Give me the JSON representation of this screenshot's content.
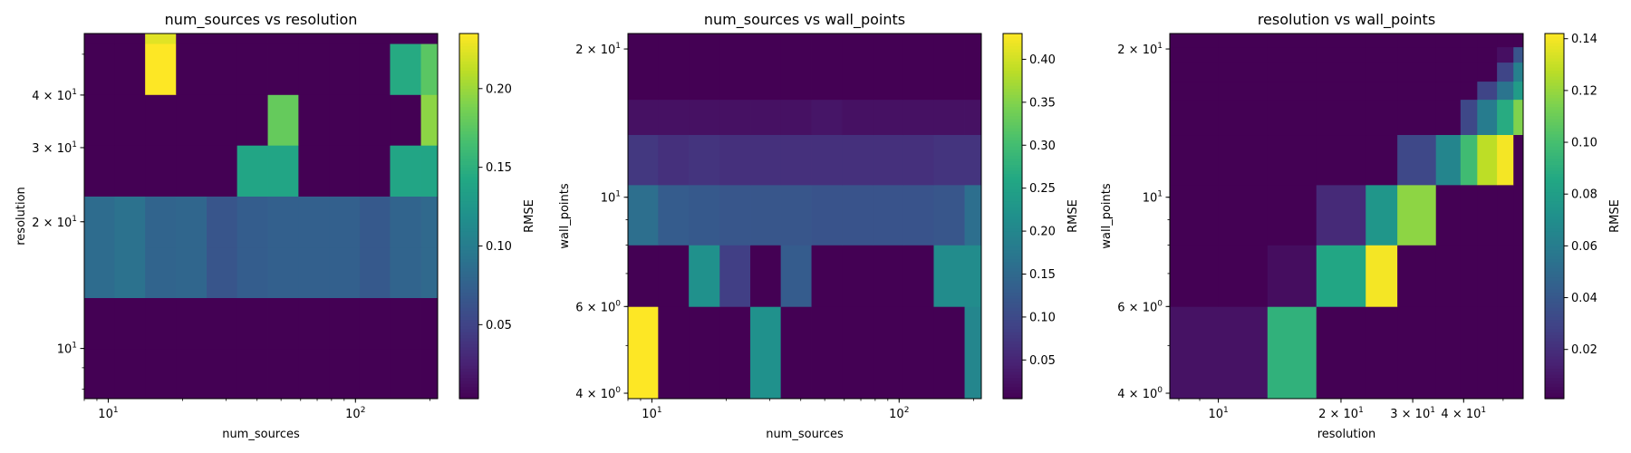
{
  "chart_data": [
    {
      "type": "heatmap",
      "title": "num_sources vs resolution",
      "xlabel": "num_sources",
      "ylabel": "resolution",
      "colorbar_label": "RMSE",
      "xscale": "log",
      "yscale": "log",
      "xlim": [
        8,
        215
      ],
      "ylim": [
        7.6,
        56
      ],
      "x_ticks": [
        {
          "value": 10,
          "label": "10",
          "exp": "1"
        },
        {
          "value": 100,
          "label": "10",
          "exp": "2"
        }
      ],
      "y_ticks": [
        {
          "value": 10,
          "label": "10",
          "exp": "1"
        },
        {
          "value": 20,
          "label": "2 × 10",
          "exp": "1"
        },
        {
          "value": 30,
          "label": "3 × 10",
          "exp": "1"
        },
        {
          "value": 40,
          "label": "4 × 10",
          "exp": "1"
        }
      ],
      "x_edges": [
        8,
        10.6,
        14.1,
        18.8,
        25.0,
        33.2,
        44.2,
        58.8,
        78.2,
        104,
        138,
        184,
        215
      ],
      "y_edges": [
        7.6,
        10.0,
        13.2,
        17.4,
        23.0,
        30.4,
        40.1,
        53.0,
        56
      ],
      "values": [
        [
          0.003,
          0.003,
          0.003,
          0.003,
          0.003,
          0.003,
          0.003,
          0.003,
          0.003,
          0.003,
          0.003,
          0.003
        ],
        [
          0.003,
          0.003,
          0.003,
          0.003,
          0.003,
          0.003,
          0.003,
          0.003,
          0.003,
          0.003,
          0.003,
          0.003
        ],
        [
          0.085,
          0.09,
          0.078,
          0.08,
          0.065,
          0.072,
          0.074,
          0.074,
          0.074,
          0.068,
          0.078,
          0.082
        ],
        [
          0.085,
          0.09,
          0.078,
          0.08,
          0.065,
          0.072,
          0.074,
          0.074,
          0.074,
          0.068,
          0.078,
          0.082
        ],
        [
          0.003,
          0.003,
          0.003,
          0.003,
          0.003,
          0.14,
          0.14,
          0.003,
          0.003,
          0.003,
          0.14,
          0.14
        ],
        [
          0.003,
          0.003,
          0.003,
          0.003,
          0.003,
          0.003,
          0.18,
          0.003,
          0.003,
          0.003,
          0.003,
          0.195
        ],
        [
          0.003,
          0.003,
          0.235,
          0.003,
          0.003,
          0.003,
          0.003,
          0.003,
          0.003,
          0.003,
          0.145,
          0.175
        ],
        [
          0.003,
          0.003,
          0.225,
          0.003,
          0.003,
          0.003,
          0.003,
          0.003,
          0.003,
          0.003,
          0.003,
          0.003
        ]
      ],
      "vmin": 0.003,
      "vmax": 0.235,
      "colorbar_ticks": [
        0.05,
        0.1,
        0.15,
        0.2
      ],
      "colorbar_tick_labels": [
        "0.05",
        "0.10",
        "0.15",
        "0.20"
      ]
    },
    {
      "type": "heatmap",
      "title": "num_sources vs wall_points",
      "xlabel": "num_sources",
      "ylabel": "wall_points",
      "colorbar_label": "RMSE",
      "xscale": "log",
      "yscale": "log",
      "xlim": [
        8,
        215
      ],
      "ylim": [
        3.9,
        21.5
      ],
      "x_ticks": [
        {
          "value": 10,
          "label": "10",
          "exp": "1"
        },
        {
          "value": 100,
          "label": "10",
          "exp": "2"
        }
      ],
      "y_ticks": [
        {
          "value": 4,
          "label": "4 × 10",
          "exp": "0"
        },
        {
          "value": 6,
          "label": "6 × 10",
          "exp": "0"
        },
        {
          "value": 10,
          "label": "10",
          "exp": "1"
        },
        {
          "value": 20,
          "label": "2 × 10",
          "exp": "1"
        }
      ],
      "x_edges": [
        8,
        10.6,
        14.1,
        18.8,
        25.0,
        33.2,
        44.2,
        58.8,
        78.2,
        104,
        138,
        184,
        215
      ],
      "y_edges": [
        3.9,
        6.0,
        8.0,
        10.6,
        13.4,
        15.8,
        21.5
      ],
      "values": [
        [
          0.43,
          0.005,
          0.005,
          0.005,
          0.22,
          0.005,
          0.005,
          0.005,
          0.005,
          0.005,
          0.005,
          0.2
        ],
        [
          0.005,
          0.005,
          0.22,
          0.085,
          0.005,
          0.13,
          0.005,
          0.005,
          0.005,
          0.005,
          0.21,
          0.21
        ],
        [
          0.16,
          0.13,
          0.125,
          0.12,
          0.12,
          0.12,
          0.115,
          0.115,
          0.115,
          0.115,
          0.12,
          0.16
        ],
        [
          0.075,
          0.065,
          0.07,
          0.065,
          0.065,
          0.065,
          0.065,
          0.065,
          0.065,
          0.065,
          0.07,
          0.07
        ],
        [
          0.025,
          0.025,
          0.025,
          0.025,
          0.025,
          0.025,
          0.03,
          0.025,
          0.025,
          0.025,
          0.025,
          0.025
        ],
        [
          0.005,
          0.005,
          0.005,
          0.005,
          0.005,
          0.005,
          0.005,
          0.005,
          0.005,
          0.005,
          0.005,
          0.005
        ]
      ],
      "vmin": 0.005,
      "vmax": 0.43,
      "colorbar_ticks": [
        0.05,
        0.1,
        0.15,
        0.2,
        0.25,
        0.3,
        0.35,
        0.4
      ],
      "colorbar_tick_labels": [
        "0.05",
        "0.10",
        "0.15",
        "0.20",
        "0.25",
        "0.30",
        "0.35",
        "0.40"
      ]
    },
    {
      "type": "heatmap",
      "title": "resolution vs wall_points",
      "xlabel": "resolution",
      "ylabel": "wall_points",
      "colorbar_label": "RMSE",
      "xscale": "log",
      "yscale": "log",
      "xlim": [
        7.6,
        56
      ],
      "ylim": [
        3.9,
        21.5
      ],
      "x_ticks": [
        {
          "value": 10,
          "label": "10",
          "exp": "1"
        },
        {
          "value": 20,
          "label": "2 × 10",
          "exp": "1"
        },
        {
          "value": 30,
          "label": "3 × 10",
          "exp": "1"
        },
        {
          "value": 40,
          "label": "4 × 10",
          "exp": "1"
        }
      ],
      "y_ticks": [
        {
          "value": 4,
          "label": "4 × 10",
          "exp": "0"
        },
        {
          "value": 6,
          "label": "6 × 10",
          "exp": "0"
        },
        {
          "value": 10,
          "label": "10",
          "exp": "1"
        },
        {
          "value": 20,
          "label": "2 × 10",
          "exp": "1"
        }
      ],
      "x_edges": [
        7.6,
        10.0,
        13.2,
        17.4,
        23.0,
        27.5,
        34.2,
        39.3,
        43.2,
        48.3,
        53.0,
        56
      ],
      "y_edges": [
        3.9,
        6.0,
        8.0,
        10.6,
        13.4,
        15.8,
        17.2,
        18.8,
        20.2,
        21.5
      ],
      "values": [
        [
          0.008,
          0.008,
          0.092,
          0.001,
          0.001,
          0.001,
          0.001,
          0.001,
          0.001,
          0.001,
          0.001
        ],
        [
          0.001,
          0.001,
          0.006,
          0.085,
          0.14,
          0.001,
          0.001,
          0.001,
          0.001,
          0.001,
          0.001
        ],
        [
          0.001,
          0.001,
          0.001,
          0.018,
          0.075,
          0.118,
          0.001,
          0.001,
          0.001,
          0.001,
          0.001
        ],
        [
          0.001,
          0.001,
          0.001,
          0.001,
          0.001,
          0.032,
          0.065,
          0.098,
          0.128,
          0.14,
          0.001
        ],
        [
          0.001,
          0.001,
          0.001,
          0.001,
          0.001,
          0.001,
          0.001,
          0.032,
          0.06,
          0.088,
          0.115
        ],
        [
          0.001,
          0.001,
          0.001,
          0.001,
          0.001,
          0.001,
          0.001,
          0.001,
          0.03,
          0.055,
          0.078
        ],
        [
          0.001,
          0.001,
          0.001,
          0.001,
          0.001,
          0.001,
          0.001,
          0.001,
          0.001,
          0.03,
          0.062
        ],
        [
          0.001,
          0.001,
          0.001,
          0.001,
          0.001,
          0.001,
          0.001,
          0.001,
          0.001,
          0.007,
          0.038
        ],
        [
          0.001,
          0.001,
          0.001,
          0.001,
          0.001,
          0.001,
          0.001,
          0.001,
          0.001,
          0.001,
          0.001
        ]
      ],
      "vmin": 0.001,
      "vmax": 0.142,
      "colorbar_ticks": [
        0.02,
        0.04,
        0.06,
        0.08,
        0.1,
        0.12,
        0.14
      ],
      "colorbar_tick_labels": [
        "0.02",
        "0.04",
        "0.06",
        "0.08",
        "0.10",
        "0.12",
        "0.14"
      ]
    }
  ]
}
